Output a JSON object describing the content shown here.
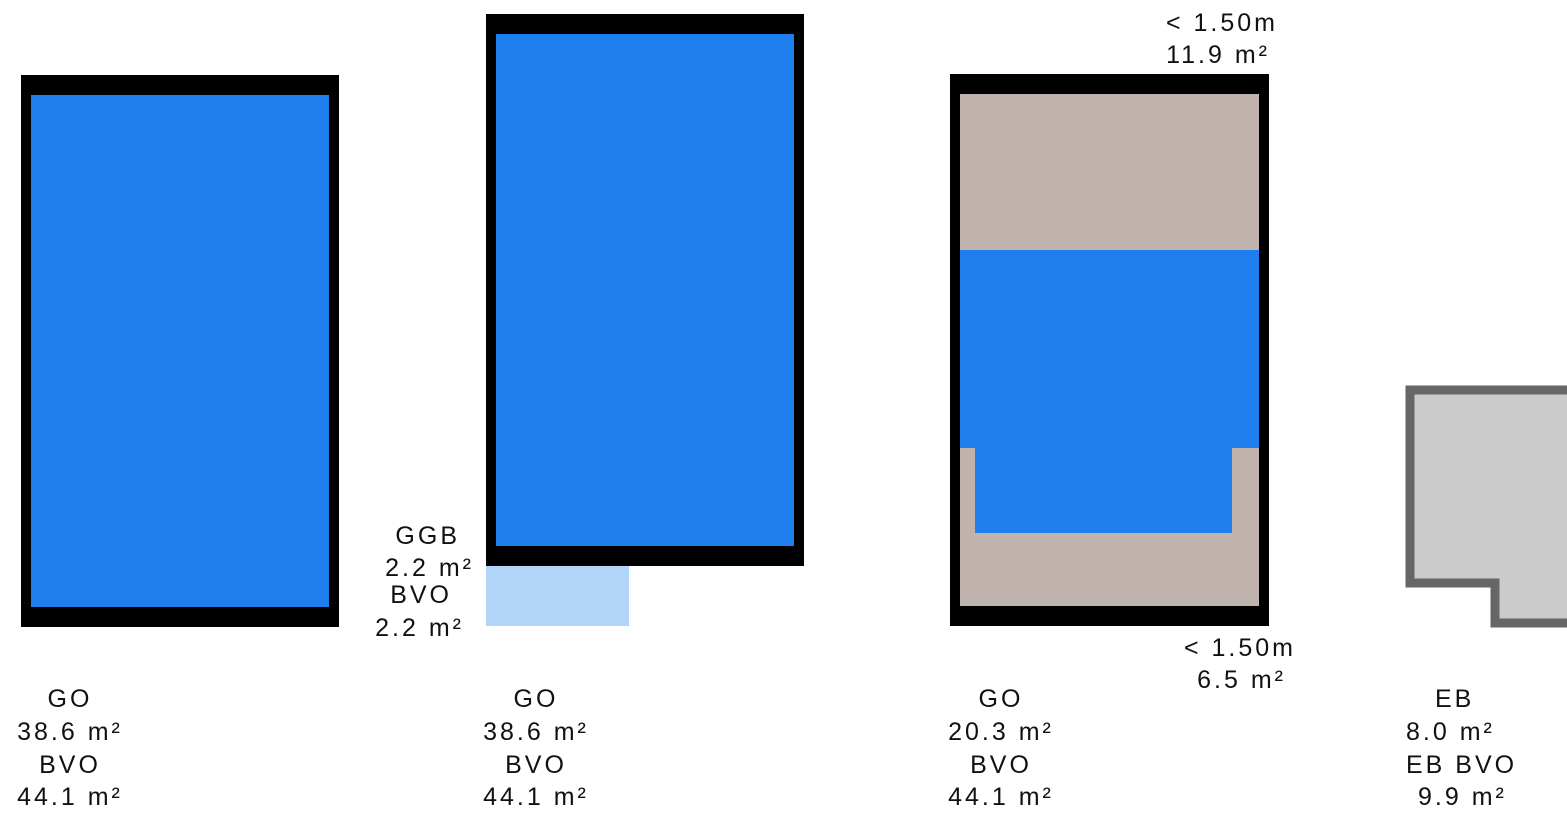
{
  "colors": {
    "gross_floor_area": "#1f7fef",
    "outline": "#000000",
    "low_height_zone": "#c0b3ae",
    "gross_external_area": "#b1d4f7",
    "annex_fill": "#cbcbcb",
    "annex_outline": "#666666"
  },
  "layouts": [
    {
      "lines": [
        "GO",
        "38.6 m²",
        "BVO",
        "44.1 m²"
      ]
    },
    {
      "lines": [
        "GO",
        "38.6 m²",
        "BVO",
        "44.1 m²"
      ],
      "extension": {
        "lines": [
          "GGB",
          "2.2 m²",
          "BVO",
          "2.2 m²"
        ]
      }
    },
    {
      "lines": [
        "GO",
        "20.3 m²",
        "BVO",
        "44.1 m²"
      ],
      "top_zone": {
        "lines": [
          "< 1.50m",
          "11.9 m²"
        ]
      },
      "bottom_zone": {
        "lines": [
          "< 1.50m",
          "6.5 m²"
        ]
      }
    },
    {
      "lines": [
        "EB",
        "8.0 m²",
        "EB BVO",
        "9.9 m²"
      ]
    }
  ]
}
